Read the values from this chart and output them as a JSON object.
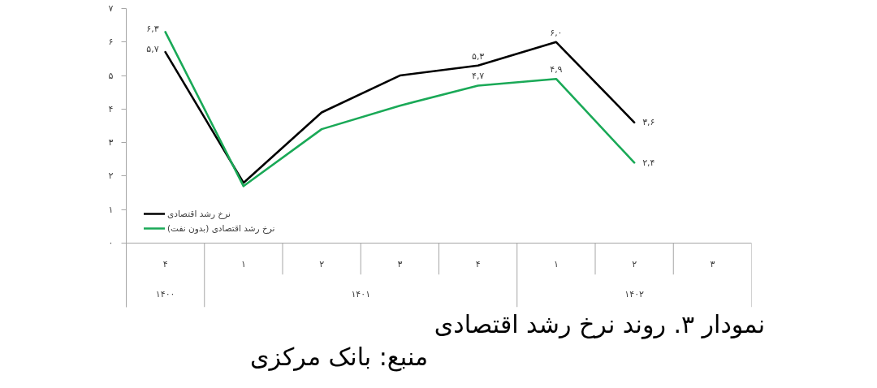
{
  "chart_data": {
    "type": "line",
    "title": "نمودار ۳. روند نرخ رشد اقتصادی",
    "annotations": [
      "۱۴۰۰",
      "۱۴۰۱",
      "۱۴۰۲",
      "منبع: بانک مرکزی"
    ],
    "categories": [
      "۴",
      "۱",
      "۲",
      "۳",
      "۴",
      "۱",
      "۲",
      "۳"
    ],
    "series": [
      {
        "name": "نرخ رشد اقتصادی",
        "color": "#000000",
        "values": [
          5.7,
          1.8,
          3.9,
          5.0,
          5.3,
          6.0,
          3.6,
          null
        ],
        "value_labels": [
          "۵,۷",
          null,
          null,
          null,
          "۵,۳",
          "۶,۰",
          "۳,۶",
          null
        ]
      },
      {
        "name": "نرخ رشد اقتصادی (بدون نفت)",
        "color": "#1aa957",
        "values": [
          6.3,
          1.7,
          3.4,
          4.1,
          4.7,
          4.9,
          2.4,
          null
        ],
        "value_labels": [
          "۶,۳",
          null,
          null,
          null,
          "۴,۷",
          "۴,۹",
          "۲,۴",
          null
        ]
      }
    ],
    "ylim": [
      0,
      7
    ],
    "yticks": [
      {
        "value": 0,
        "label": "۰"
      },
      {
        "value": 1,
        "label": "۱"
      },
      {
        "value": 2,
        "label": "۲"
      },
      {
        "value": 3,
        "label": "۳"
      },
      {
        "value": 4,
        "label": "۴"
      },
      {
        "value": 5,
        "label": "۵"
      },
      {
        "value": 6,
        "label": "۶"
      },
      {
        "value": 7,
        "label": "۷"
      }
    ],
    "legend": "bottom left"
  }
}
